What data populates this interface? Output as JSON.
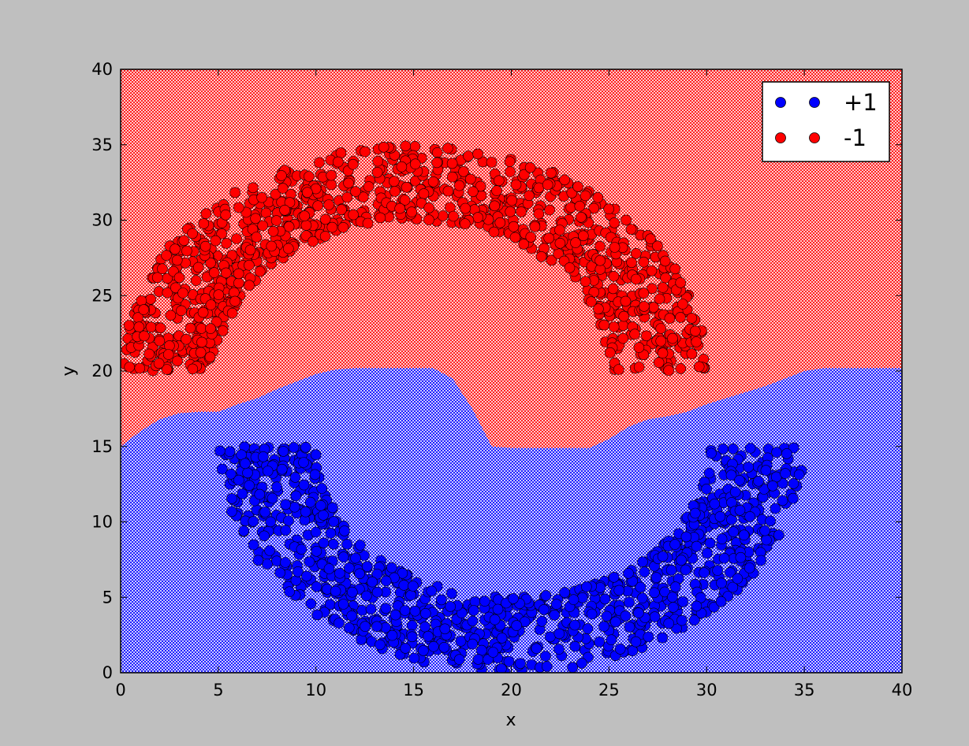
{
  "chart_data": {
    "type": "scatter",
    "title": "",
    "xlabel": "x",
    "ylabel": "y",
    "xlim": [
      0,
      40
    ],
    "ylim": [
      0,
      40
    ],
    "xticks": [
      "0",
      "5",
      "10",
      "15",
      "20",
      "25",
      "30",
      "35",
      "40"
    ],
    "yticks": [
      "0",
      "5",
      "10",
      "15",
      "20",
      "25",
      "30",
      "35",
      "40"
    ],
    "legend_position": "top-right",
    "background": "decision regions: hatched red for -1, hatched blue for +1",
    "region_colors": {
      "positive": "#0000ff",
      "negative": "#ff0000"
    },
    "decision_boundary": {
      "x": [
        0,
        1,
        2,
        3,
        4,
        5,
        6,
        7,
        8,
        9,
        10,
        11,
        12,
        13,
        14,
        15,
        16,
        17,
        18,
        19,
        20,
        21,
        22,
        23,
        24,
        25,
        26,
        27,
        28,
        29,
        30,
        31,
        32,
        33,
        34,
        35,
        36,
        37,
        38,
        39,
        40
      ],
      "y": [
        15,
        16,
        16.8,
        17.2,
        17.3,
        17.3,
        17.8,
        18.2,
        18.8,
        19.3,
        19.8,
        20.1,
        20.2,
        20.2,
        20.2,
        20.2,
        20.2,
        19.5,
        17.5,
        15,
        14.9,
        14.9,
        14.9,
        14.9,
        14.9,
        15.5,
        16.3,
        16.8,
        17.0,
        17.3,
        17.8,
        18.2,
        18.6,
        19.0,
        19.5,
        20.0,
        20.2,
        20.2,
        20.2,
        20.2,
        20.2
      ]
    },
    "series": [
      {
        "name": "+1",
        "color": "#0000ff",
        "shape": "lower half ring centered at (20, 15), radius about 10-15",
        "center": [
          20,
          15
        ],
        "radius_range": [
          10,
          15
        ],
        "angle_range_deg": [
          180,
          360
        ],
        "count": 1000
      },
      {
        "name": "-1",
        "color": "#ff0000",
        "shape": "upper half ring centered at (15, 20), radius about 10-15",
        "center": [
          15,
          20
        ],
        "radius_range": [
          10,
          15
        ],
        "angle_range_deg": [
          0,
          180
        ],
        "count": 1000
      }
    ]
  }
}
